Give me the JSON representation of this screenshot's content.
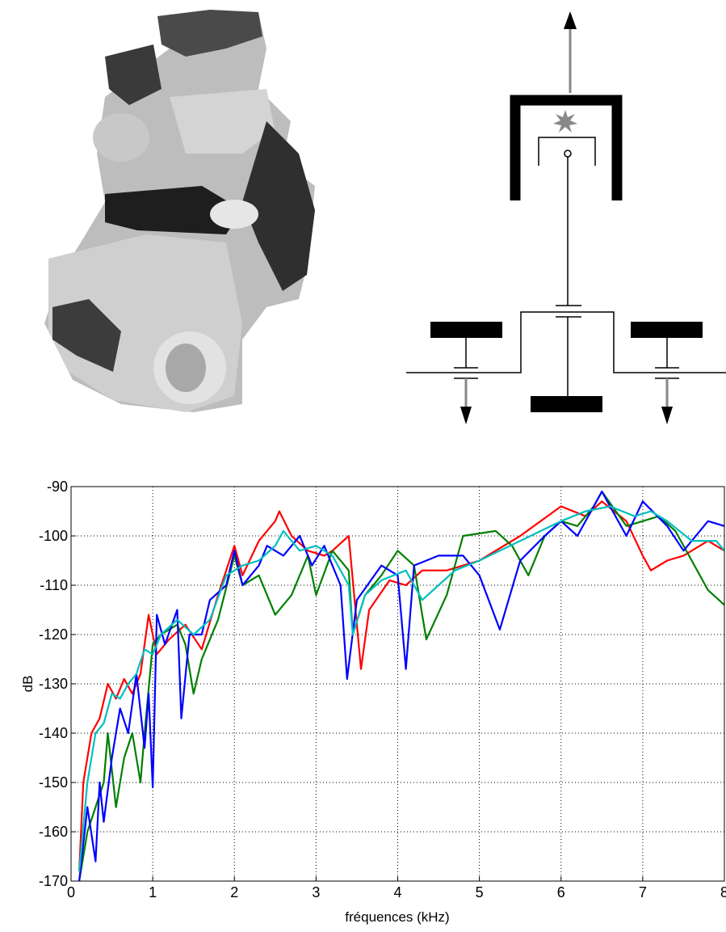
{
  "chart_data": {
    "type": "line",
    "xlabel": "fréquences (kHz)",
    "ylabel": "dB",
    "xlim": [
      0,
      8
    ],
    "ylim": [
      -170,
      -90
    ],
    "xticks": [
      0,
      1,
      2,
      3,
      4,
      5,
      6,
      7,
      8
    ],
    "yticks": [
      -170,
      -160,
      -150,
      -140,
      -130,
      -120,
      -110,
      -100,
      -90
    ],
    "grid": true,
    "series": [
      {
        "color": "#ff0000",
        "x": [
          0.1,
          0.15,
          0.25,
          0.35,
          0.45,
          0.55,
          0.65,
          0.75,
          0.85,
          0.95,
          1.05,
          1.2,
          1.4,
          1.6,
          1.8,
          2.0,
          2.1,
          2.3,
          2.5,
          2.55,
          2.7,
          2.9,
          3.1,
          3.2,
          3.4,
          3.5,
          3.55,
          3.65,
          3.9,
          4.1,
          4.3,
          4.6,
          5.0,
          5.5,
          6.0,
          6.3,
          6.5,
          6.8,
          7.0,
          7.1,
          7.3,
          7.5,
          7.8,
          8.0
        ],
        "values": [
          -168,
          -150,
          -140,
          -137,
          -130,
          -133,
          -129,
          -132,
          -128,
          -116,
          -124,
          -121,
          -118,
          -123,
          -112,
          -102,
          -108,
          -101,
          -97,
          -95,
          -100,
          -103,
          -104,
          -103,
          -100,
          -118,
          -127,
          -115,
          -109,
          -110,
          -107,
          -107,
          -105,
          -100,
          -94,
          -96,
          -93,
          -97,
          -104,
          -107,
          -105,
          -104,
          -101,
          -103
        ]
      },
      {
        "color": "#008000",
        "x": [
          0.1,
          0.2,
          0.3,
          0.4,
          0.45,
          0.55,
          0.65,
          0.75,
          0.85,
          0.9,
          1.0,
          1.1,
          1.3,
          1.4,
          1.5,
          1.6,
          1.8,
          2.0,
          2.1,
          2.3,
          2.5,
          2.7,
          2.9,
          3.0,
          3.2,
          3.4,
          3.45,
          3.6,
          3.8,
          4.0,
          4.2,
          4.35,
          4.6,
          4.8,
          5.2,
          5.4,
          5.6,
          5.8,
          6.0,
          6.2,
          6.4,
          6.5,
          6.8,
          7.2,
          7.4,
          7.6,
          7.8,
          8.0
        ],
        "values": [
          -170,
          -160,
          -155,
          -150,
          -140,
          -155,
          -145,
          -140,
          -150,
          -140,
          -122,
          -120,
          -118,
          -122,
          -132,
          -125,
          -117,
          -104,
          -110,
          -108,
          -116,
          -112,
          -104,
          -112,
          -103,
          -107,
          -120,
          -112,
          -108,
          -103,
          -106,
          -121,
          -112,
          -100,
          -99,
          -102,
          -108,
          -100,
          -97,
          -98,
          -94,
          -91,
          -98,
          -96,
          -99,
          -105,
          -111,
          -114
        ]
      },
      {
        "color": "#0000ff",
        "x": [
          0.1,
          0.2,
          0.3,
          0.35,
          0.4,
          0.5,
          0.6,
          0.7,
          0.8,
          0.9,
          0.95,
          1.0,
          1.05,
          1.15,
          1.3,
          1.35,
          1.45,
          1.6,
          1.7,
          1.9,
          2.0,
          2.1,
          2.3,
          2.4,
          2.6,
          2.8,
          2.95,
          3.1,
          3.3,
          3.38,
          3.5,
          3.8,
          4.0,
          4.1,
          4.2,
          4.5,
          4.8,
          5.0,
          5.25,
          5.5,
          5.8,
          6.0,
          6.2,
          6.5,
          6.8,
          7.0,
          7.3,
          7.5,
          7.8,
          8.0
        ],
        "values": [
          -170,
          -155,
          -166,
          -150,
          -158,
          -145,
          -135,
          -140,
          -128,
          -143,
          -132,
          -151,
          -116,
          -122,
          -115,
          -137,
          -120,
          -120,
          -113,
          -110,
          -103,
          -110,
          -106,
          -102,
          -104,
          -100,
          -106,
          -102,
          -110,
          -129,
          -113,
          -106,
          -108,
          -127,
          -106,
          -104,
          -104,
          -108,
          -119,
          -105,
          -100,
          -97,
          -100,
          -91,
          -100,
          -93,
          -98,
          -103,
          -97,
          -98
        ]
      },
      {
        "color": "#00bfbf",
        "x": [
          0.1,
          0.2,
          0.3,
          0.4,
          0.5,
          0.6,
          0.7,
          0.8,
          0.9,
          1.0,
          1.1,
          1.3,
          1.5,
          1.7,
          1.9,
          2.1,
          2.3,
          2.5,
          2.6,
          2.8,
          3.0,
          3.2,
          3.4,
          3.45,
          3.6,
          3.8,
          4.1,
          4.3,
          4.5,
          4.7,
          5.0,
          5.5,
          6.0,
          6.3,
          6.6,
          6.9,
          7.1,
          7.3,
          7.6,
          7.9,
          8.0
        ],
        "values": [
          -168,
          -150,
          -140,
          -138,
          -132,
          -133,
          -130,
          -128,
          -123,
          -124,
          -120,
          -117,
          -120,
          -117,
          -108,
          -106,
          -105,
          -102,
          -99,
          -103,
          -102,
          -104,
          -110,
          -120,
          -112,
          -109,
          -107,
          -113,
          -110,
          -107,
          -105,
          -101,
          -97,
          -95,
          -94,
          -96,
          -95,
          -97,
          -101,
          -101,
          -103
        ]
      }
    ]
  }
}
